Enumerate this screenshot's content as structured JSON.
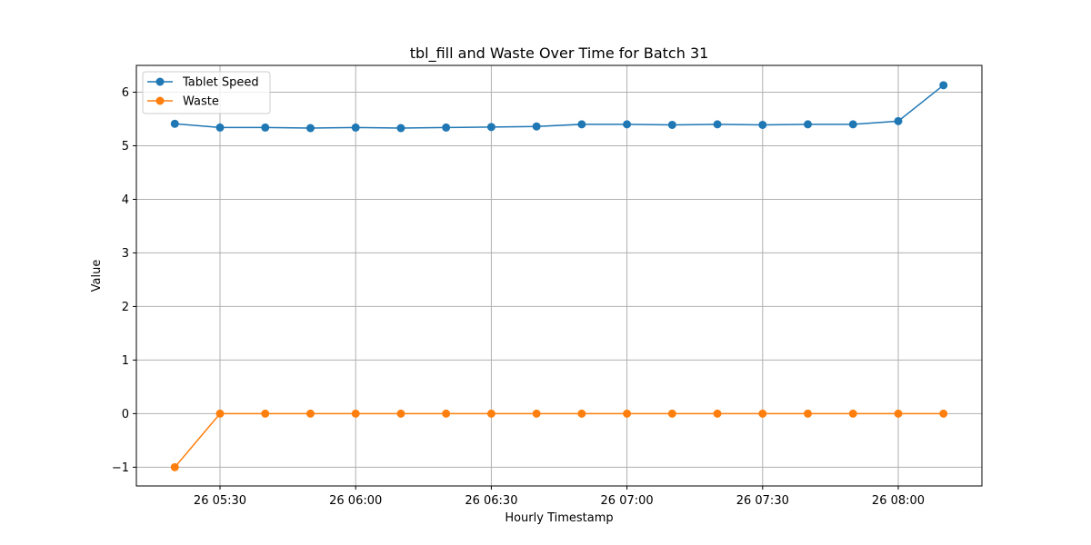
{
  "chart_data": {
    "type": "line",
    "title": "tbl_fill and Waste Over Time for Batch 31",
    "xlabel": "Hourly Timestamp",
    "ylabel": "Value",
    "x_range": [
      "26 05:20",
      "26 08:10"
    ],
    "ylim": [
      -1.35,
      6.5
    ],
    "x_ticks": [
      {
        "at": "26 05:30",
        "label": "26 05:30"
      },
      {
        "at": "26 06:00",
        "label": "26 06:00"
      },
      {
        "at": "26 06:30",
        "label": "26 06:30"
      },
      {
        "at": "26 07:00",
        "label": "26 07:00"
      },
      {
        "at": "26 07:30",
        "label": "26 07:30"
      },
      {
        "at": "26 08:00",
        "label": "26 08:00"
      }
    ],
    "y_ticks": [
      {
        "value": -1,
        "label": "−1"
      },
      {
        "value": 0,
        "label": "0"
      },
      {
        "value": 1,
        "label": "1"
      },
      {
        "value": 2,
        "label": "2"
      },
      {
        "value": 3,
        "label": "3"
      },
      {
        "value": 4,
        "label": "4"
      },
      {
        "value": 5,
        "label": "5"
      },
      {
        "value": 6,
        "label": "6"
      }
    ],
    "grid": true,
    "legend_position": "top-left",
    "x": [
      "26 05:20",
      "26 05:30",
      "26 05:40",
      "26 05:50",
      "26 06:00",
      "26 06:10",
      "26 06:20",
      "26 06:30",
      "26 06:40",
      "26 06:50",
      "26 07:00",
      "26 07:10",
      "26 07:20",
      "26 07:30",
      "26 07:40",
      "26 07:50",
      "26 08:00",
      "26 08:10"
    ],
    "series": [
      {
        "name": "Tablet Speed",
        "color": "#1f77b4",
        "values": [
          5.41,
          5.34,
          5.34,
          5.33,
          5.34,
          5.33,
          5.34,
          5.35,
          5.36,
          5.4,
          5.4,
          5.39,
          5.4,
          5.39,
          5.4,
          5.4,
          5.46,
          6.13
        ]
      },
      {
        "name": "Waste",
        "color": "#ff7f0e",
        "values": [
          -1,
          0,
          0,
          0,
          0,
          0,
          0,
          0,
          0,
          0,
          0,
          0,
          0,
          0,
          0,
          0,
          0,
          0
        ]
      }
    ]
  }
}
